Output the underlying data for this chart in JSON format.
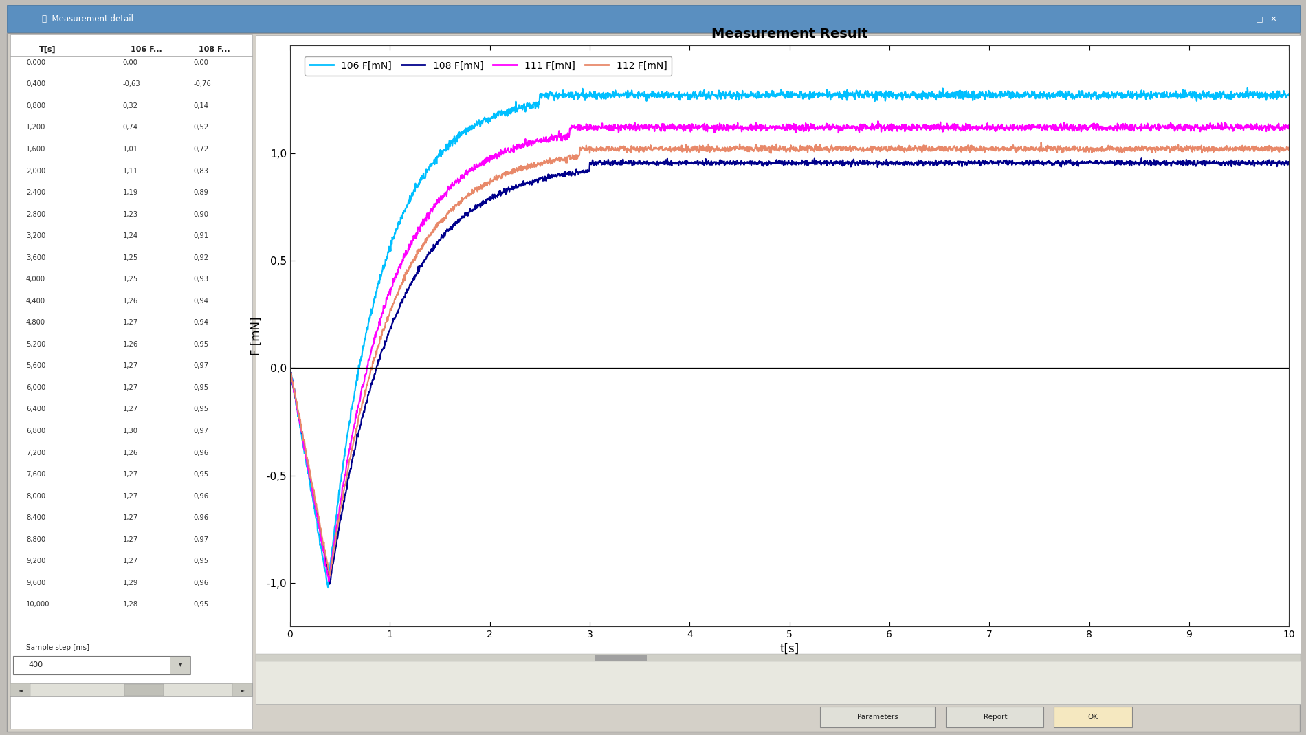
{
  "title": "Measurement Result",
  "xlabel": "t[s]",
  "ylabel": "F [mN]",
  "xlim": [
    0,
    10
  ],
  "ylim": [
    -1.2,
    1.5
  ],
  "yticks": [
    -1.0,
    -0.5,
    0.0,
    0.5,
    1.0
  ],
  "ytick_labels": [
    "-1,0",
    "-0,5",
    "0,0",
    "0,5",
    "1,0"
  ],
  "xticks": [
    0,
    1,
    2,
    3,
    4,
    5,
    6,
    7,
    8,
    9,
    10
  ],
  "legend_labels": [
    "106 F[mN]",
    "108 F[mN]",
    "111 F[mN]",
    "112 F[mN]"
  ],
  "line_colors": [
    "#00BFFF",
    "#00008B",
    "#FF00FF",
    "#E8896A"
  ],
  "bg_color": "#F0F0F0",
  "plot_bg": "#FFFFFF",
  "window_bg": "#D4D0C8",
  "table_data": {
    "T_s": [
      0.0,
      0.4,
      0.8,
      1.2,
      1.6,
      2.0,
      2.4,
      2.8,
      3.2,
      3.6,
      4.0,
      4.4,
      4.8,
      5.2,
      5.6,
      6.0,
      6.4,
      6.8,
      7.2,
      7.6,
      8.0,
      8.4,
      8.8,
      9.2,
      9.6,
      10.0
    ],
    "F106": [
      0.0,
      -0.63,
      0.32,
      0.74,
      1.01,
      1.11,
      1.19,
      1.23,
      1.24,
      1.25,
      1.25,
      1.26,
      1.27,
      1.26,
      1.27,
      1.27,
      1.27,
      1.3,
      1.26,
      1.27,
      1.27,
      1.27,
      1.27,
      1.27,
      1.29,
      1.28
    ],
    "F108": [
      0.0,
      -0.76,
      0.14,
      0.52,
      0.72,
      0.83,
      0.89,
      0.9,
      0.91,
      0.92,
      0.93,
      0.94,
      0.94,
      0.95,
      0.97,
      0.95,
      0.95,
      0.97,
      0.96,
      0.95,
      0.96,
      0.96,
      0.97,
      0.95,
      0.96,
      0.95
    ]
  }
}
